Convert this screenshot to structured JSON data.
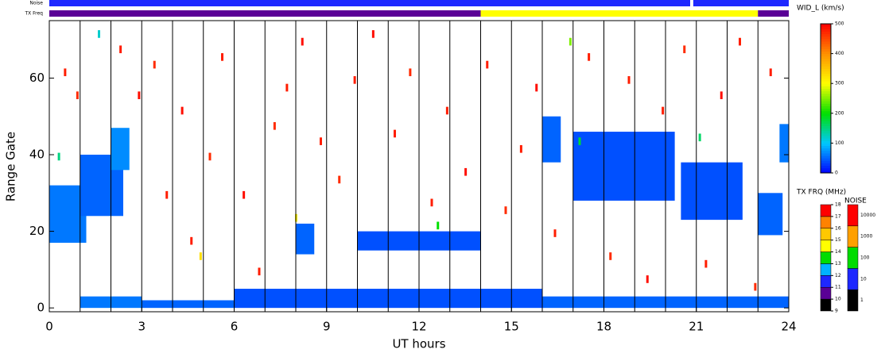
{
  "chart_data": {
    "type": "range-time",
    "ylabel": "Range Gate",
    "xlabel": "UT hours",
    "xlim": [
      0,
      24
    ],
    "xticks": [
      0,
      3,
      6,
      9,
      12,
      15,
      18,
      21,
      24
    ],
    "hour_lines": [
      1,
      2,
      3,
      4,
      5,
      6,
      7,
      8,
      9,
      10,
      11,
      12,
      13,
      14,
      15,
      16,
      17,
      18,
      19,
      20,
      21,
      22,
      23
    ],
    "ylim": [
      -1,
      75
    ],
    "yticks": [
      0,
      20,
      40,
      60
    ],
    "width_title": "WID_L (km/s)",
    "width_lim": [
      0,
      500
    ],
    "width_ticks": [
      0,
      100,
      200,
      300,
      400,
      500
    ],
    "width_colors": [
      "#0000ff",
      "#00c8ff",
      "#00e000",
      "#ffff00",
      "#ff9000",
      "#ff0000"
    ],
    "freq_title": "TX FRQ (MHz)",
    "freq_ticks": [
      9,
      10,
      11,
      12,
      13,
      14,
      15,
      16,
      17,
      18
    ],
    "freq_colors": [
      "#000000",
      "#5a0096",
      "#1e28ff",
      "#00b4ff",
      "#00dc00",
      "#ffff00",
      "#ffc800",
      "#ff8200",
      "#ff0000"
    ],
    "noise_title": "NOISE",
    "noise_ticks": [
      1,
      10,
      100,
      1000,
      10000
    ],
    "noise_colors": [
      "#000000",
      "#1e28ff",
      "#00dc00",
      "#ffa000",
      "#ff0000"
    ],
    "noise_label": "Noise",
    "txfreq_label": "TX Freq",
    "noise_bar": [
      {
        "start": 0,
        "end": 20.8,
        "level": 10
      },
      {
        "start": 20.9,
        "end": 24,
        "level": 10
      }
    ],
    "txfreq_bar": [
      {
        "start": 0,
        "end": 14,
        "level": 10
      },
      {
        "start": 14,
        "end": 23,
        "level": 14
      },
      {
        "start": 23,
        "end": 24,
        "level": 10
      }
    ],
    "blocks": [
      {
        "t0": 0,
        "t1": 1.2,
        "g0": 17,
        "g1": 32,
        "wid": 60
      },
      {
        "t0": 1,
        "t1": 2.4,
        "g0": 24,
        "g1": 40,
        "wid": 50
      },
      {
        "t0": 2,
        "t1": 2.6,
        "g0": 36,
        "g1": 47,
        "wid": 70
      },
      {
        "t0": 8,
        "t1": 8.6,
        "g0": 14,
        "g1": 22,
        "wid": 50
      },
      {
        "t0": 10,
        "t1": 14,
        "g0": 15,
        "g1": 20,
        "wid": 40
      },
      {
        "t0": 16,
        "t1": 16.6,
        "g0": 38,
        "g1": 50,
        "wid": 50
      },
      {
        "t0": 17,
        "t1": 20.3,
        "g0": 28,
        "g1": 46,
        "wid": 40
      },
      {
        "t0": 20.5,
        "t1": 22.5,
        "g0": 23,
        "g1": 38,
        "wid": 40
      },
      {
        "t0": 23,
        "t1": 23.8,
        "g0": 19,
        "g1": 30,
        "wid": 50
      },
      {
        "t0": 23.7,
        "t1": 24,
        "g0": 38,
        "g1": 48,
        "wid": 60
      },
      {
        "t0": 1,
        "t1": 3,
        "g0": 0,
        "g1": 3,
        "wid": 60
      },
      {
        "t0": 3,
        "t1": 6,
        "g0": 0,
        "g1": 2,
        "wid": 50
      },
      {
        "t0": 6,
        "t1": 16,
        "g0": 0,
        "g1": 5,
        "wid": 40
      },
      {
        "t0": 16,
        "t1": 24,
        "g0": 0,
        "g1": 3,
        "wid": 50
      }
    ],
    "cells": [
      {
        "t": 0.5,
        "gate": 62,
        "wid": 480
      },
      {
        "t": 0.9,
        "gate": 56,
        "wid": 470
      },
      {
        "t": 1.6,
        "gate": 72,
        "wid": 120
      },
      {
        "t": 2.3,
        "gate": 68,
        "wid": 480
      },
      {
        "t": 2.9,
        "gate": 56,
        "wid": 490
      },
      {
        "t": 3.4,
        "gate": 64,
        "wid": 470
      },
      {
        "t": 3.8,
        "gate": 30,
        "wid": 480
      },
      {
        "t": 4.3,
        "gate": 52,
        "wid": 490
      },
      {
        "t": 4.6,
        "gate": 18,
        "wid": 480
      },
      {
        "t": 5.2,
        "gate": 40,
        "wid": 470
      },
      {
        "t": 5.6,
        "gate": 66,
        "wid": 480
      },
      {
        "t": 6.3,
        "gate": 30,
        "wid": 490
      },
      {
        "t": 6.8,
        "gate": 10,
        "wid": 480
      },
      {
        "t": 7.3,
        "gate": 48,
        "wid": 470
      },
      {
        "t": 7.7,
        "gate": 58,
        "wid": 480
      },
      {
        "t": 8.2,
        "gate": 70,
        "wid": 490
      },
      {
        "t": 8.8,
        "gate": 44,
        "wid": 480
      },
      {
        "t": 9.4,
        "gate": 34,
        "wid": 470
      },
      {
        "t": 9.9,
        "gate": 60,
        "wid": 480
      },
      {
        "t": 10.5,
        "gate": 72,
        "wid": 490
      },
      {
        "t": 11.2,
        "gate": 46,
        "wid": 480
      },
      {
        "t": 11.7,
        "gate": 62,
        "wid": 470
      },
      {
        "t": 12.4,
        "gate": 28,
        "wid": 480
      },
      {
        "t": 12.9,
        "gate": 52,
        "wid": 480
      },
      {
        "t": 13.5,
        "gate": 36,
        "wid": 490
      },
      {
        "t": 14.2,
        "gate": 64,
        "wid": 480
      },
      {
        "t": 14.8,
        "gate": 26,
        "wid": 470
      },
      {
        "t": 15.3,
        "gate": 42,
        "wid": 480
      },
      {
        "t": 15.8,
        "gate": 58,
        "wid": 490
      },
      {
        "t": 16.4,
        "gate": 20,
        "wid": 480
      },
      {
        "t": 16.9,
        "gate": 70,
        "wid": 250
      },
      {
        "t": 17.5,
        "gate": 66,
        "wid": 480
      },
      {
        "t": 18.2,
        "gate": 14,
        "wid": 470
      },
      {
        "t": 18.8,
        "gate": 60,
        "wid": 480
      },
      {
        "t": 19.4,
        "gate": 8,
        "wid": 490
      },
      {
        "t": 19.9,
        "gate": 52,
        "wid": 480
      },
      {
        "t": 20.6,
        "gate": 68,
        "wid": 470
      },
      {
        "t": 21.3,
        "gate": 12,
        "wid": 480
      },
      {
        "t": 21.8,
        "gate": 56,
        "wid": 490
      },
      {
        "t": 22.4,
        "gate": 70,
        "wid": 480
      },
      {
        "t": 22.9,
        "gate": 6,
        "wid": 470
      },
      {
        "t": 23.4,
        "gate": 62,
        "wid": 480
      },
      {
        "t": 0.3,
        "gate": 40,
        "wid": 150
      },
      {
        "t": 12.6,
        "gate": 22,
        "wid": 200
      },
      {
        "t": 8.0,
        "gate": 24,
        "wid": 310
      },
      {
        "t": 17.2,
        "gate": 44,
        "wid": 180
      },
      {
        "t": 21.1,
        "gate": 45,
        "wid": 160
      },
      {
        "t": 4.9,
        "gate": 14,
        "wid": 330
      }
    ]
  }
}
